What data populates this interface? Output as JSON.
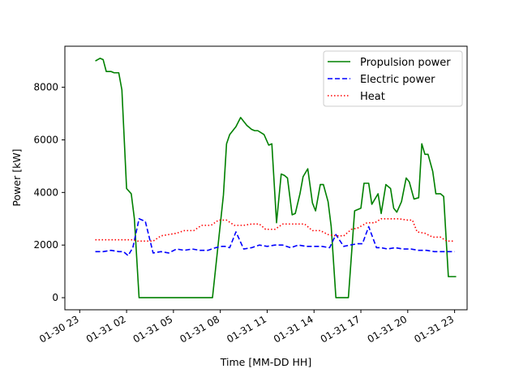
{
  "chart_data": {
    "type": "line",
    "title": "",
    "xlabel": "Time [MM-DD HH]",
    "ylabel": "Power [kW]",
    "xlim": [
      -0.95,
      24.8
    ],
    "ylim": [
      -460,
      9560
    ],
    "grid": false,
    "legend_position": "top-right",
    "x_unit": "hours since 01-30 23:00",
    "x_ticks": [
      {
        "x": 0,
        "label": "01-30 23"
      },
      {
        "x": 3,
        "label": "01-31 02"
      },
      {
        "x": 6,
        "label": "01-31 05"
      },
      {
        "x": 9,
        "label": "01-31 08"
      },
      {
        "x": 12,
        "label": "01-31 11"
      },
      {
        "x": 15,
        "label": "01-31 14"
      },
      {
        "x": 18,
        "label": "01-31 17"
      },
      {
        "x": 21,
        "label": "01-31 20"
      },
      {
        "x": 24,
        "label": "01-31 23"
      }
    ],
    "y_ticks": [
      0,
      2000,
      4000,
      6000,
      8000
    ],
    "series": [
      {
        "name": "Propulsion power",
        "color": "#008000",
        "dash": "solid",
        "x": [
          1.0,
          1.3,
          1.5,
          1.7,
          2.0,
          2.2,
          2.5,
          2.7,
          3.0,
          3.3,
          3.5,
          3.8,
          4.1,
          8.5,
          9.2,
          9.4,
          9.6,
          10.0,
          10.3,
          10.7,
          11.0,
          11.2,
          11.4,
          11.8,
          12.1,
          12.3,
          12.6,
          12.9,
          13.1,
          13.3,
          13.6,
          13.8,
          14.1,
          14.3,
          14.6,
          14.9,
          15.1,
          15.4,
          15.6,
          15.9,
          16.1,
          16.4,
          16.6,
          17.1,
          17.2,
          17.6,
          18.0,
          18.2,
          18.5,
          18.7,
          19.1,
          19.3,
          19.6,
          19.9,
          20.1,
          20.3,
          20.6,
          20.9,
          21.1,
          21.4,
          21.7,
          21.9,
          22.1,
          22.3,
          22.6,
          22.8,
          23.1,
          23.3,
          23.6,
          23.8,
          24.1
        ],
        "values": [
          9000,
          9100,
          9050,
          8600,
          8600,
          8550,
          8550,
          7900,
          4150,
          3950,
          3000,
          0,
          0,
          0,
          3900,
          5850,
          6200,
          6500,
          6850,
          6550,
          6400,
          6350,
          6350,
          6200,
          5800,
          5850,
          2850,
          4700,
          4650,
          4550,
          3150,
          3200,
          3950,
          4600,
          4900,
          3600,
          3300,
          4300,
          4300,
          3650,
          2700,
          0,
          0,
          0,
          0,
          3300,
          3400,
          4350,
          4350,
          3550,
          3950,
          3200,
          4300,
          4150,
          3400,
          3250,
          3650,
          4550,
          4400,
          3750,
          3800,
          5850,
          5450,
          5450,
          4800,
          3950,
          3950,
          3850,
          800,
          800,
          800
        ]
      },
      {
        "name": "Electric power",
        "color": "#0000ff",
        "dash": "dashed",
        "x": [
          1.0,
          1.5,
          2.0,
          2.5,
          2.8,
          3.1,
          3.4,
          3.8,
          4.2,
          4.7,
          5.2,
          5.7,
          6.2,
          6.7,
          7.2,
          7.7,
          8.2,
          8.7,
          9.1,
          9.3,
          9.6,
          10.0,
          10.5,
          11.0,
          11.5,
          12.0,
          12.5,
          13.0,
          13.5,
          14.0,
          14.5,
          15.0,
          15.5,
          16.0,
          16.4,
          16.9,
          17.3,
          17.8,
          18.1,
          18.5,
          19.0,
          19.3,
          19.7,
          20.2,
          20.7,
          21.2,
          21.7,
          22.2,
          22.7,
          23.2,
          23.7,
          24.0
        ],
        "values": [
          1750,
          1750,
          1800,
          1750,
          1750,
          1600,
          1900,
          3000,
          2900,
          1700,
          1750,
          1700,
          1850,
          1800,
          1850,
          1800,
          1800,
          1900,
          1950,
          1950,
          1900,
          2500,
          1850,
          1900,
          2000,
          1950,
          2000,
          2000,
          1900,
          2000,
          1950,
          1950,
          1950,
          1900,
          2400,
          1950,
          2000,
          2050,
          2050,
          2700,
          1900,
          1900,
          1850,
          1900,
          1850,
          1850,
          1800,
          1800,
          1750,
          1750,
          1750,
          1750
        ]
      },
      {
        "name": "Heat",
        "color": "#ff0000",
        "dash": "dotted",
        "x": [
          1.0,
          1.5,
          2.0,
          2.5,
          3.0,
          3.4,
          3.7,
          4.1,
          4.7,
          5.2,
          5.7,
          6.2,
          6.7,
          7.3,
          7.8,
          8.4,
          8.9,
          9.4,
          9.9,
          10.5,
          11.0,
          11.5,
          11.9,
          12.5,
          13.0,
          13.5,
          14.0,
          14.4,
          14.9,
          15.4,
          15.9,
          16.4,
          16.9,
          17.4,
          17.8,
          18.4,
          18.9,
          19.3,
          19.8,
          20.4,
          21.0,
          21.3,
          21.6,
          22.1,
          22.6,
          23.1,
          23.5,
          24.0
        ],
        "values": [
          2200,
          2200,
          2200,
          2200,
          2200,
          2200,
          2150,
          2150,
          2150,
          2350,
          2400,
          2450,
          2550,
          2550,
          2750,
          2750,
          2950,
          2950,
          2750,
          2750,
          2800,
          2800,
          2600,
          2600,
          2800,
          2800,
          2800,
          2800,
          2550,
          2550,
          2400,
          2350,
          2350,
          2600,
          2650,
          2850,
          2850,
          3000,
          3000,
          3000,
          2950,
          2950,
          2500,
          2450,
          2300,
          2300,
          2150,
          2150
        ]
      }
    ]
  }
}
